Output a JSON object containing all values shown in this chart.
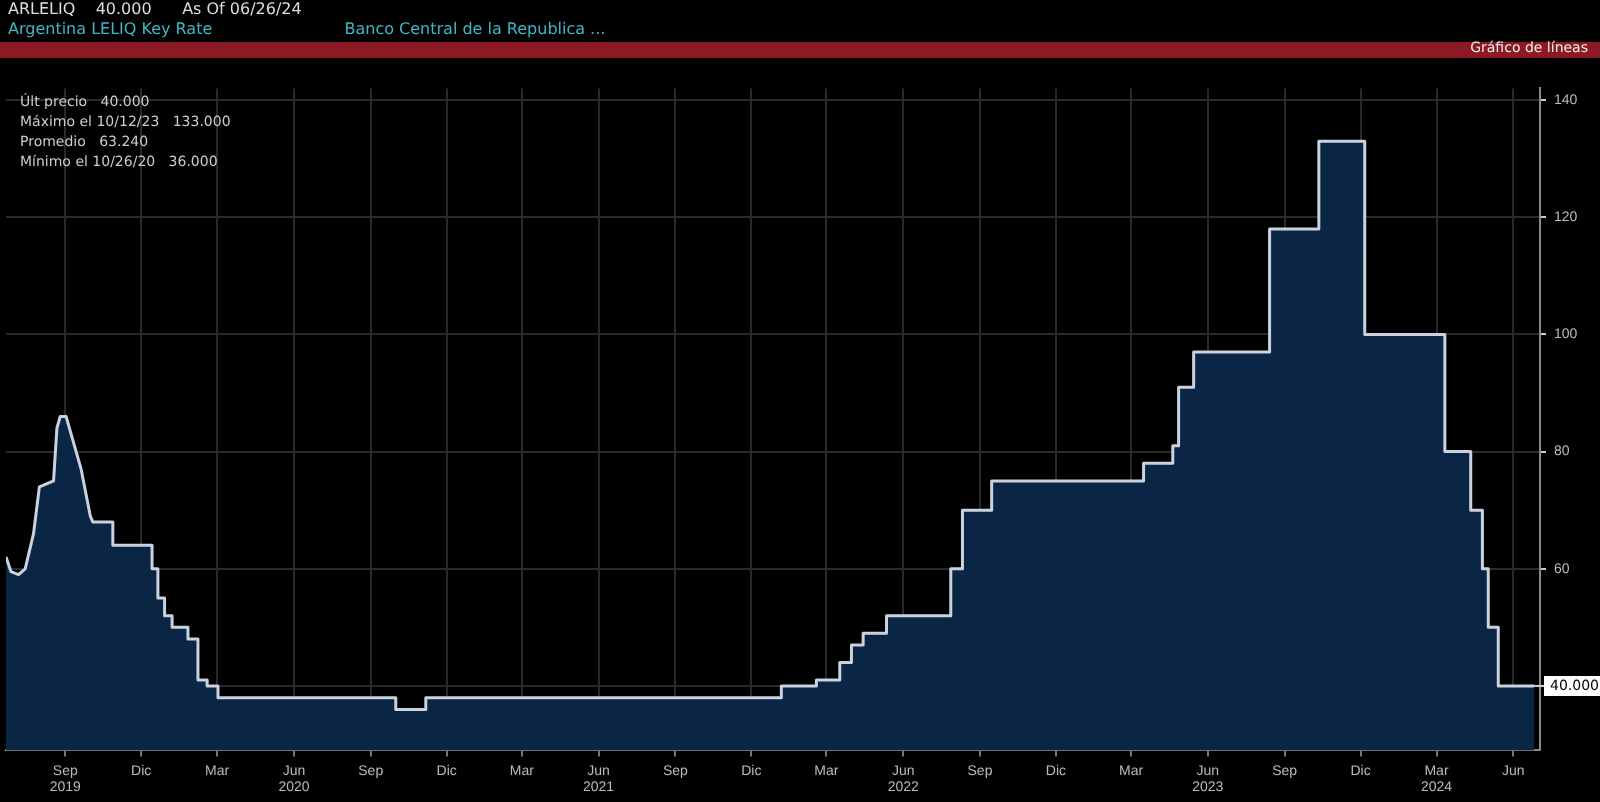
{
  "chart_data": {
    "type": "area",
    "title": "ARLELIQ",
    "subtitle": "Argentina LELIQ Key Rate",
    "annotations": [
      "40.000",
      "As Of 06/26/24",
      "Banco Central de la Republica ...",
      "Gráfico de líneas",
      "Últ precio   40.000",
      "Máximo el 10/12/23   133.000",
      "Promedio   63.240",
      "Mínimo el 10/26/20   36.000",
      {
        "text": "40.000",
        "x": "2024-06-26",
        "y": 40
      }
    ],
    "x": [
      "2019-06-22",
      "2019-06-28",
      "2019-07-07",
      "2019-07-15",
      "2019-07-25",
      "2019-08-01",
      "2019-08-18",
      "2019-08-22",
      "2019-08-26",
      "2019-09-02",
      "2019-09-10",
      "2019-09-20",
      "2019-10-01",
      "2019-10-04",
      "2019-10-28",
      "2019-10-28",
      "2019-12-14",
      "2019-12-14",
      "2019-12-21",
      "2019-12-21",
      "2019-12-29",
      "2019-12-29",
      "2020-01-07",
      "2020-01-07",
      "2020-01-26",
      "2020-01-26",
      "2020-02-07",
      "2020-02-07",
      "2020-02-18",
      "2020-02-18",
      "2020-03-02",
      "2020-03-02",
      "2020-10-01",
      "2020-10-01",
      "2020-11-06",
      "2020-11-06",
      "2022-01-06",
      "2022-01-06",
      "2022-02-17",
      "2022-02-17",
      "2022-03-17",
      "2022-03-17",
      "2022-03-31",
      "2022-03-31",
      "2022-04-14",
      "2022-04-14",
      "2022-05-12",
      "2022-05-12",
      "2022-07-28",
      "2022-07-28",
      "2022-08-11",
      "2022-08-11",
      "2022-09-15",
      "2022-09-15",
      "2023-03-16",
      "2023-03-16",
      "2023-04-20",
      "2023-04-20",
      "2023-04-27",
      "2023-04-27",
      "2023-05-15",
      "2023-05-15",
      "2023-08-14",
      "2023-08-14",
      "2023-10-12",
      "2023-10-12",
      "2023-12-06",
      "2023-12-06",
      "2024-03-11",
      "2024-03-11",
      "2024-04-11",
      "2024-04-11",
      "2024-04-25",
      "2024-04-25",
      "2024-05-02",
      "2024-05-02",
      "2024-05-14",
      "2024-05-14",
      "2024-06-26"
    ],
    "series": [
      {
        "color": "#0b2545",
        "values": [
          62,
          59.5,
          59,
          60,
          66,
          74,
          75,
          84,
          86,
          86,
          82,
          77,
          69,
          68,
          68,
          64,
          64,
          60,
          60,
          55,
          55,
          52,
          52,
          50,
          50,
          48,
          48,
          41,
          41,
          40,
          40,
          38,
          38,
          36,
          36,
          38,
          38,
          40,
          40,
          41,
          41,
          44,
          44,
          47,
          47,
          49,
          49,
          52,
          52,
          60,
          60,
          70,
          70,
          75,
          75,
          78,
          78,
          81,
          81,
          91,
          91,
          97,
          97,
          118,
          118,
          133,
          133,
          100,
          100,
          80,
          80,
          70,
          70,
          60,
          60,
          50,
          50,
          40,
          40
        ]
      }
    ],
    "xlim": [
      "2019-06-22",
      "2024-07-03"
    ],
    "xticks": [
      {
        "value": "2019-09-01",
        "label": "Sep\n2019"
      },
      {
        "value": "2019-12-01",
        "label": "Dic"
      },
      {
        "value": "2020-03-01",
        "label": "Mar"
      },
      {
        "value": "2020-06-01",
        "label": "Jun\n2020"
      },
      {
        "value": "2020-09-01",
        "label": "Sep"
      },
      {
        "value": "2020-12-01",
        "label": "Dic"
      },
      {
        "value": "2021-03-01",
        "label": "Mar"
      },
      {
        "value": "2021-06-01",
        "label": "Jun\n2021"
      },
      {
        "value": "2021-09-01",
        "label": "Sep"
      },
      {
        "value": "2021-12-01",
        "label": "Dic"
      },
      {
        "value": "2022-03-01",
        "label": "Mar"
      },
      {
        "value": "2022-06-01",
        "label": "Jun\n2022"
      },
      {
        "value": "2022-09-01",
        "label": "Sep"
      },
      {
        "value": "2022-12-01",
        "label": "Dic"
      },
      {
        "value": "2023-03-01",
        "label": "Mar"
      },
      {
        "value": "2023-06-01",
        "label": "Jun\n2023"
      },
      {
        "value": "2023-09-01",
        "label": "Sep"
      },
      {
        "value": "2023-12-01",
        "label": "Dic"
      },
      {
        "value": "2024-03-01",
        "label": "Mar\n2024"
      },
      {
        "value": "2024-06-01",
        "label": "Jun"
      }
    ],
    "ylim": [
      29,
      142
    ],
    "yticks": [
      {
        "value": 40,
        "label": null
      },
      60,
      80,
      100,
      120,
      140
    ],
    "grid": true,
    "legend": false
  }
}
